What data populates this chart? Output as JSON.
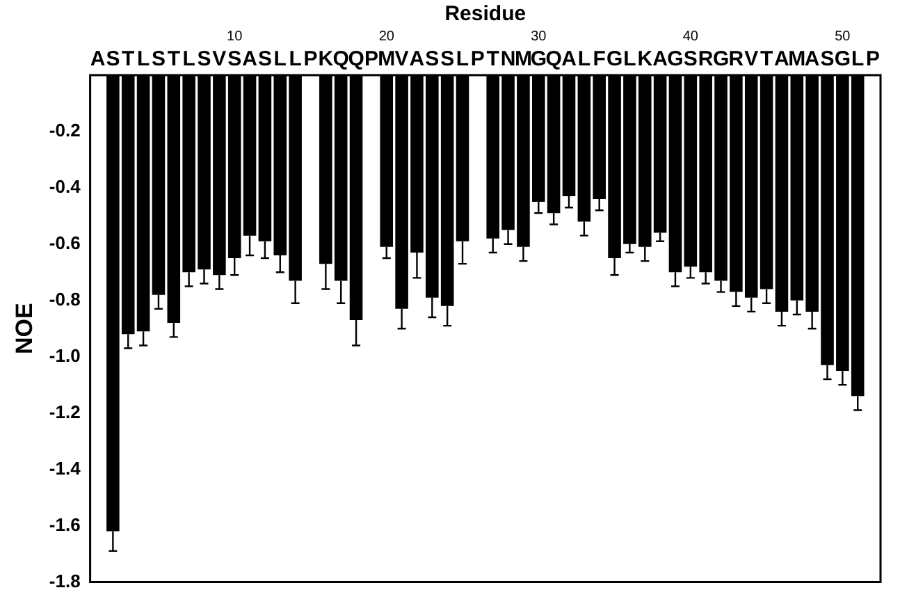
{
  "chart_data": {
    "type": "bar",
    "xlabel": "Residue",
    "ylabel": "NOE",
    "categories": [
      "A",
      "S",
      "T",
      "L",
      "S",
      "T",
      "L",
      "S",
      "V",
      "S",
      "A",
      "S",
      "L",
      "L",
      "P",
      "K",
      "Q",
      "Q",
      "P",
      "M",
      "V",
      "A",
      "S",
      "S",
      "L",
      "P",
      "T",
      "N",
      "M",
      "G",
      "Q",
      "A",
      "L",
      "F",
      "G",
      "L",
      "K",
      "A",
      "G",
      "S",
      "R",
      "G",
      "R",
      "V",
      "T",
      "A",
      "M",
      "A",
      "S",
      "G",
      "L",
      "P"
    ],
    "values": [
      null,
      -1.62,
      -0.92,
      -0.91,
      -0.78,
      -0.88,
      -0.7,
      -0.69,
      -0.71,
      -0.65,
      -0.57,
      -0.59,
      -0.64,
      -0.73,
      null,
      -0.67,
      -0.73,
      -0.87,
      null,
      -0.61,
      -0.83,
      -0.63,
      -0.79,
      -0.82,
      -0.59,
      null,
      -0.58,
      -0.55,
      -0.61,
      -0.45,
      -0.49,
      -0.43,
      -0.52,
      -0.44,
      -0.65,
      -0.6,
      -0.61,
      -0.56,
      -0.7,
      -0.68,
      -0.7,
      -0.73,
      -0.77,
      -0.79,
      -0.76,
      -0.84,
      -0.8,
      -0.84,
      -1.03,
      -1.05,
      -1.14,
      null
    ],
    "errors": [
      null,
      [
        -1.69,
        -1.62
      ],
      [
        -0.97,
        -0.92
      ],
      [
        -0.96,
        -0.91
      ],
      [
        -0.83,
        -0.78
      ],
      [
        -0.93,
        -0.88
      ],
      [
        -0.75,
        -0.7
      ],
      [
        -0.74,
        -0.69
      ],
      [
        -0.76,
        -0.71
      ],
      [
        -0.71,
        -0.65
      ],
      [
        -0.64,
        -0.57
      ],
      [
        -0.65,
        -0.59
      ],
      [
        -0.7,
        -0.64
      ],
      [
        -0.81,
        -0.73
      ],
      null,
      [
        -0.76,
        -0.67
      ],
      [
        -0.81,
        -0.73
      ],
      [
        -0.96,
        -0.87
      ],
      null,
      [
        -0.65,
        -0.61
      ],
      [
        -0.9,
        -0.83
      ],
      [
        -0.72,
        -0.63
      ],
      [
        -0.86,
        -0.79
      ],
      [
        -0.89,
        -0.82
      ],
      [
        -0.67,
        -0.59
      ],
      null,
      [
        -0.63,
        -0.58
      ],
      [
        -0.6,
        -0.55
      ],
      [
        -0.66,
        -0.61
      ],
      [
        -0.49,
        -0.45
      ],
      [
        -0.53,
        -0.49
      ],
      [
        -0.47,
        -0.43
      ],
      [
        -0.57,
        -0.52
      ],
      [
        -0.48,
        -0.44
      ],
      [
        -0.71,
        -0.65
      ],
      [
        -0.63,
        -0.6
      ],
      [
        -0.66,
        -0.61
      ],
      [
        -0.59,
        -0.56
      ],
      [
        -0.75,
        -0.7
      ],
      [
        -0.72,
        -0.68
      ],
      [
        -0.74,
        -0.7
      ],
      [
        -0.77,
        -0.73
      ],
      [
        -0.82,
        -0.77
      ],
      [
        -0.84,
        -0.79
      ],
      [
        -0.81,
        -0.76
      ],
      [
        -0.89,
        -0.84
      ],
      [
        -0.85,
        -0.8
      ],
      [
        -0.9,
        -0.84
      ],
      [
        -1.08,
        -1.03
      ],
      [
        -1.1,
        -1.05
      ],
      [
        -1.19,
        -1.14
      ],
      null
    ],
    "color": "#000000",
    "ylim": [
      -1.8,
      0
    ],
    "yticks": [
      -0.2,
      -0.4,
      -0.6,
      -0.8,
      {
        "value": -1,
        "label": "-1.0"
      },
      -1.2,
      -1.4,
      -1.6,
      -1.8
    ],
    "x2lim": [
      0.5,
      52.5
    ],
    "x2ticks": [
      10,
      20,
      30,
      40,
      50
    ],
    "grid": false,
    "legend": false
  }
}
